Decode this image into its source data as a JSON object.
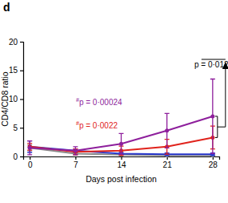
{
  "chart_data": {
    "type": "line",
    "title": "d",
    "x_label": "Days post infection",
    "y_label": "CD4/CD8 ratio",
    "x": [
      0,
      7,
      14,
      21,
      28
    ],
    "xlim": [
      -1,
      29
    ],
    "xticks": [
      0,
      7,
      14,
      21,
      28
    ],
    "ylim": [
      0,
      20
    ],
    "yticks": [
      0,
      5,
      10,
      15,
      20
    ],
    "grid": false,
    "marker": "circle",
    "series": [
      {
        "color": "#8e1f9c",
        "values": [
          1.5,
          1.0,
          2.2,
          4.5,
          7.0
        ],
        "errors": [
          1.2,
          0.7,
          1.8,
          3.0,
          6.5
        ]
      },
      {
        "color": "#e0231c",
        "values": [
          1.7,
          0.8,
          1.0,
          1.7,
          3.3
        ],
        "errors": [
          0.6,
          0.5,
          0.8,
          1.3,
          2.0
        ]
      },
      {
        "color": "#2b3bcf",
        "values": [
          1.7,
          1.0,
          0.5,
          0.4,
          0.4
        ],
        "errors": [
          1.0,
          0.3,
          0.2,
          0.2,
          0.2
        ]
      },
      {
        "color": "#8a8a8a",
        "values": [
          1.5,
          0.5,
          0.3,
          0.2,
          0.2
        ],
        "errors": [
          0.5,
          0.2,
          0.1,
          0.1,
          0.1
        ]
      }
    ],
    "annotations": [
      {
        "text": "#p = 0·00024",
        "color": "#8e1f9c"
      },
      {
        "text": "#p = 0·0022",
        "color": "#e0231c"
      },
      {
        "text": "p = 0·012",
        "color": "#000000"
      }
    ]
  }
}
